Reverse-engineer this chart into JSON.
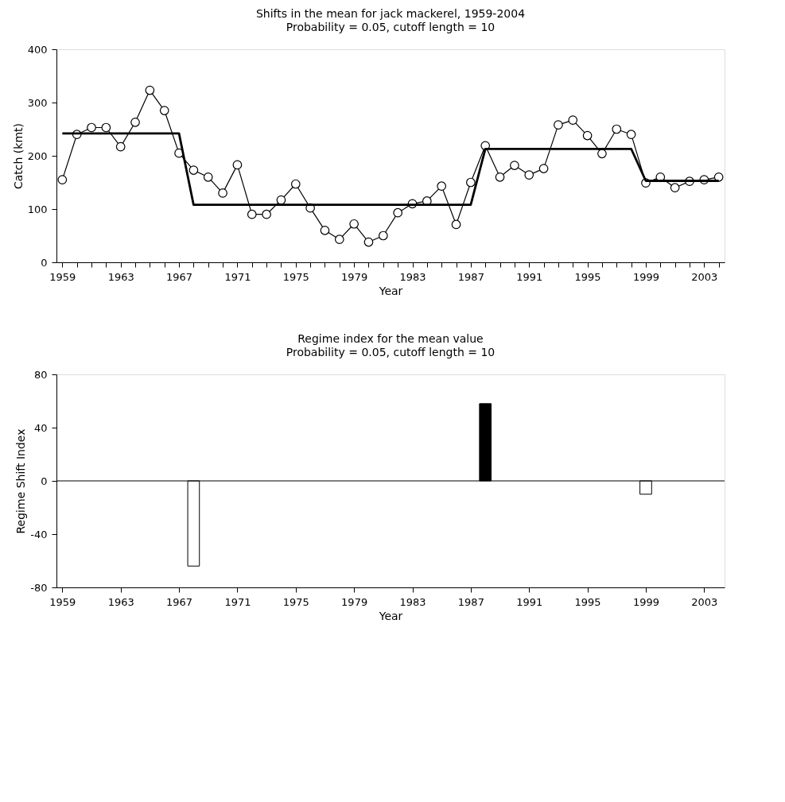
{
  "chart_data": [
    {
      "type": "line",
      "title": "Shifts in the mean for jack mackerel, 1959-2004",
      "subtitle": "Probability = 0.05, cutoff length = 10",
      "xlabel": "Year",
      "ylabel": "Catch (kmt)",
      "x": [
        1959,
        1960,
        1961,
        1962,
        1963,
        1964,
        1965,
        1966,
        1967,
        1968,
        1969,
        1970,
        1971,
        1972,
        1973,
        1974,
        1975,
        1976,
        1977,
        1978,
        1979,
        1980,
        1981,
        1982,
        1983,
        1984,
        1985,
        1986,
        1987,
        1988,
        1989,
        1990,
        1991,
        1992,
        1993,
        1994,
        1995,
        1996,
        1997,
        1998,
        1999,
        2000,
        2001,
        2002,
        2003,
        2004
      ],
      "series": [
        {
          "color": "#000000",
          "marker": "circle",
          "values": [
            155,
            240,
            253,
            253,
            217,
            263,
            323,
            285,
            205,
            173,
            160,
            130,
            183,
            90,
            90,
            117,
            147,
            102,
            60,
            43,
            72,
            38,
            50,
            93,
            110,
            115,
            143,
            71,
            150,
            219,
            160,
            182,
            164,
            176,
            258,
            267,
            238,
            204,
            250,
            240,
            149,
            160,
            140,
            152,
            155,
            160
          ]
        },
        {
          "color": "#000000",
          "marker": "none",
          "x": [
            1959,
            1967,
            1968,
            1987,
            1988,
            1998,
            1999,
            2004
          ],
          "values": [
            242,
            242,
            108,
            108,
            213,
            213,
            153,
            153
          ]
        }
      ],
      "xlim": [
        1958.6,
        2004.4
      ],
      "xticks": [
        1959,
        {
          "value": 1960,
          "label": null
        },
        {
          "value": 1961,
          "label": null
        },
        {
          "value": 1962,
          "label": null
        },
        1963,
        {
          "value": 1964,
          "label": null
        },
        {
          "value": 1965,
          "label": null
        },
        {
          "value": 1966,
          "label": null
        },
        1967,
        {
          "value": 1968,
          "label": null
        },
        {
          "value": 1969,
          "label": null
        },
        {
          "value": 1970,
          "label": null
        },
        1971,
        {
          "value": 1972,
          "label": null
        },
        {
          "value": 1973,
          "label": null
        },
        {
          "value": 1974,
          "label": null
        },
        1975,
        {
          "value": 1976,
          "label": null
        },
        {
          "value": 1977,
          "label": null
        },
        {
          "value": 1978,
          "label": null
        },
        1979,
        {
          "value": 1980,
          "label": null
        },
        {
          "value": 1981,
          "label": null
        },
        {
          "value": 1982,
          "label": null
        },
        1983,
        {
          "value": 1984,
          "label": null
        },
        {
          "value": 1985,
          "label": null
        },
        {
          "value": 1986,
          "label": null
        },
        1987,
        {
          "value": 1988,
          "label": null
        },
        {
          "value": 1989,
          "label": null
        },
        {
          "value": 1990,
          "label": null
        },
        1991,
        {
          "value": 1992,
          "label": null
        },
        {
          "value": 1993,
          "label": null
        },
        {
          "value": 1994,
          "label": null
        },
        1995,
        {
          "value": 1996,
          "label": null
        },
        {
          "value": 1997,
          "label": null
        },
        {
          "value": 1998,
          "label": null
        },
        1999,
        {
          "value": 2000,
          "label": null
        },
        {
          "value": 2001,
          "label": null
        },
        {
          "value": 2002,
          "label": null
        },
        2003,
        {
          "value": 2004,
          "label": null
        }
      ],
      "ylim": [
        0,
        400
      ],
      "yticks": [
        0,
        100,
        200,
        300,
        400
      ],
      "grid": false
    },
    {
      "type": "bar",
      "title": "Regime index for the mean value",
      "subtitle": "Probability = 0.05, cutoff length = 10",
      "xlabel": "Year",
      "ylabel": "Regime Shift Index",
      "x": [
        1968,
        1988,
        1999
      ],
      "values": [
        -64,
        58,
        -10
      ],
      "colors": [
        "#ffffff",
        "#000000",
        "#ffffff"
      ],
      "xlim": [
        1958.6,
        2004.4
      ],
      "xticks": [
        1959,
        1963,
        1967,
        1971,
        1975,
        1979,
        1983,
        1987,
        1991,
        1995,
        1999,
        2003
      ],
      "ylim": [
        -80,
        80
      ],
      "yticks": [
        -80,
        -40,
        0,
        40,
        80
      ],
      "ref_lines": [
        {
          "axis": "y",
          "value": 0,
          "color": "#000000"
        }
      ],
      "grid": false
    }
  ]
}
